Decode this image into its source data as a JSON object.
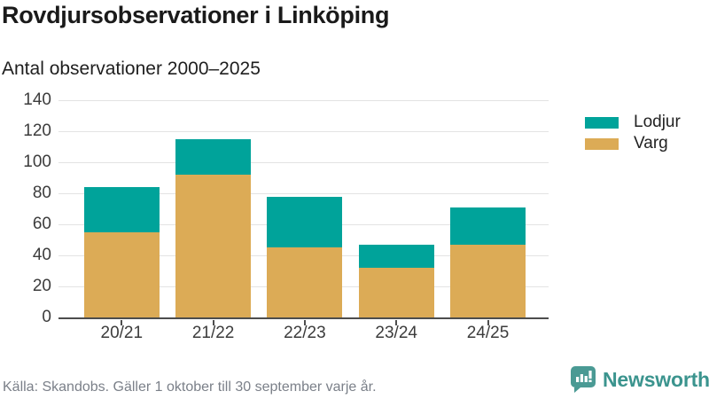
{
  "header": {
    "title": "Rovdjursobservationer i Linköping",
    "subtitle": "Antal observationer 2000–2025"
  },
  "chart_data": {
    "type": "bar",
    "stacked": true,
    "title": "Rovdjursobservationer i Linköping",
    "subtitle": "Antal observationer 2000–2025",
    "categories": [
      "20/21",
      "21/22",
      "22/23",
      "23/24",
      "24/25"
    ],
    "series": [
      {
        "name": "Varg",
        "color": "#dcab56",
        "values": [
          55,
          92,
          45,
          32,
          47
        ]
      },
      {
        "name": "Lodjur",
        "color": "#00a39a",
        "values": [
          29,
          23,
          33,
          15,
          24
        ]
      }
    ],
    "totals": [
      84,
      115,
      78,
      47,
      71
    ],
    "xlabel": "",
    "ylabel": "",
    "ylim": [
      0,
      140
    ],
    "yticks": [
      0,
      20,
      40,
      60,
      80,
      100,
      120,
      140
    ],
    "grid": true,
    "legend_position": "right",
    "legend_order": [
      "Lodjur",
      "Varg"
    ]
  },
  "legend": {
    "items": [
      {
        "label": "Lodjur",
        "color": "#00a39a"
      },
      {
        "label": "Varg",
        "color": "#dcab56"
      }
    ]
  },
  "footer": {
    "source": "Källa: Skandobs. Gäller 1 oktober till 30 september varje år.",
    "brand": "Newsworthy"
  },
  "colors": {
    "teal": "#00a39a",
    "gold": "#dcab56",
    "grid": "#e3e3e3",
    "axis": "#4d4d4d",
    "axis_text": "#3c3c3c",
    "title_text": "#1a1a1a",
    "muted_text": "#7b8089",
    "brand_teal": "#3b948e",
    "brand_bubble": "#4a9a94",
    "background": "#ffffff"
  }
}
